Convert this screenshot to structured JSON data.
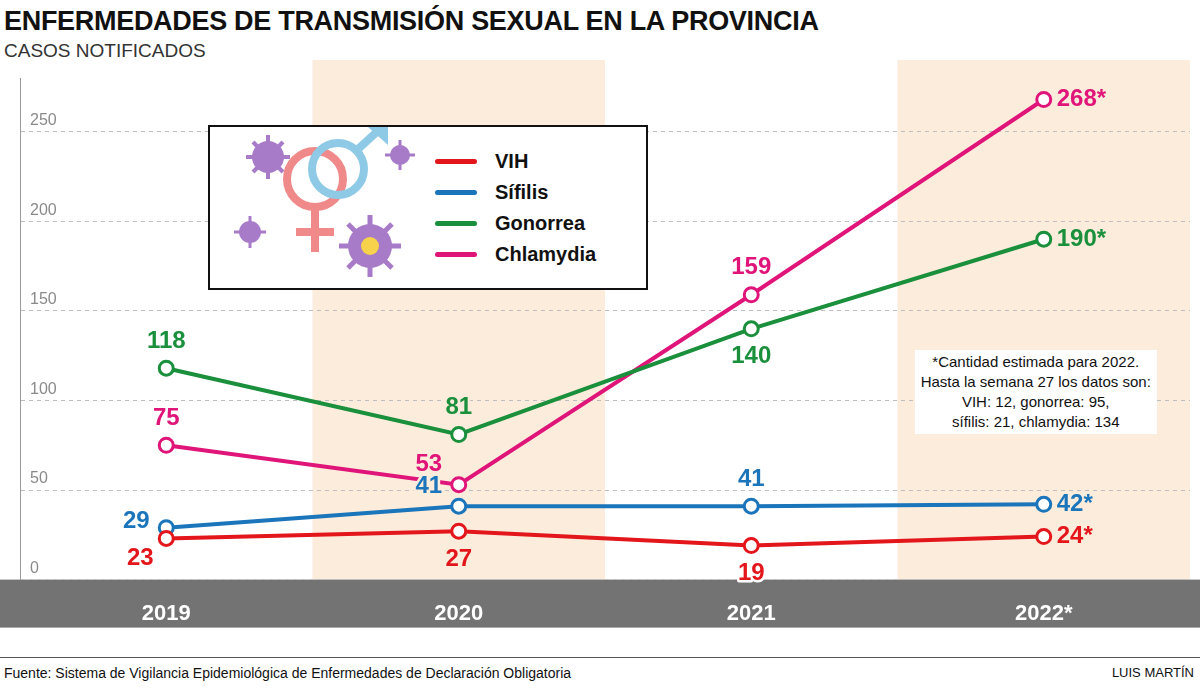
{
  "chart_data": {
    "type": "line",
    "title": "ENFERMEDADES DE TRANSMISIÓN SEXUAL EN LA PROVINCIA",
    "subtitle": "CASOS NOTIFICADOS",
    "categories": [
      "2019",
      "2020",
      "2021",
      "2022*"
    ],
    "series": [
      {
        "name": "VIH",
        "color": "#e3161b",
        "values": [
          23,
          27,
          19,
          24
        ],
        "value_labels": [
          "23",
          "27",
          "19",
          "24*"
        ]
      },
      {
        "name": "Sífilis",
        "color": "#1b75bb",
        "values": [
          29,
          41,
          41,
          42
        ],
        "value_labels": [
          "29",
          "41",
          "41",
          "42*"
        ]
      },
      {
        "name": "Gonorrea",
        "color": "#1a8f3c",
        "values": [
          118,
          81,
          140,
          190
        ],
        "value_labels": [
          "118",
          "81",
          "140",
          "190*"
        ]
      },
      {
        "name": "Chlamydia",
        "color": "#e0157a",
        "values": [
          75,
          53,
          159,
          268
        ],
        "value_labels": [
          "75",
          "53",
          "159",
          "268*"
        ]
      }
    ],
    "ylim": [
      0,
      280
    ],
    "yticks": [
      0,
      50,
      100,
      150,
      200,
      250
    ],
    "grid": true,
    "legend": "upper left",
    "data_labels": true,
    "marker": "circle",
    "annotations": [
      "*Cantidad estimada para 2022.",
      "Hasta la semana 27 los datos son:",
      "VIH: 12, gonorrea: 95,",
      "sífilis: 21, chlamydia: 134"
    ],
    "source": "Fuente: Sistema de Vigilancia Epidemiológica de Enfermedades de Declaración Obligatoria",
    "credit": "LUIS MARTÍN"
  }
}
